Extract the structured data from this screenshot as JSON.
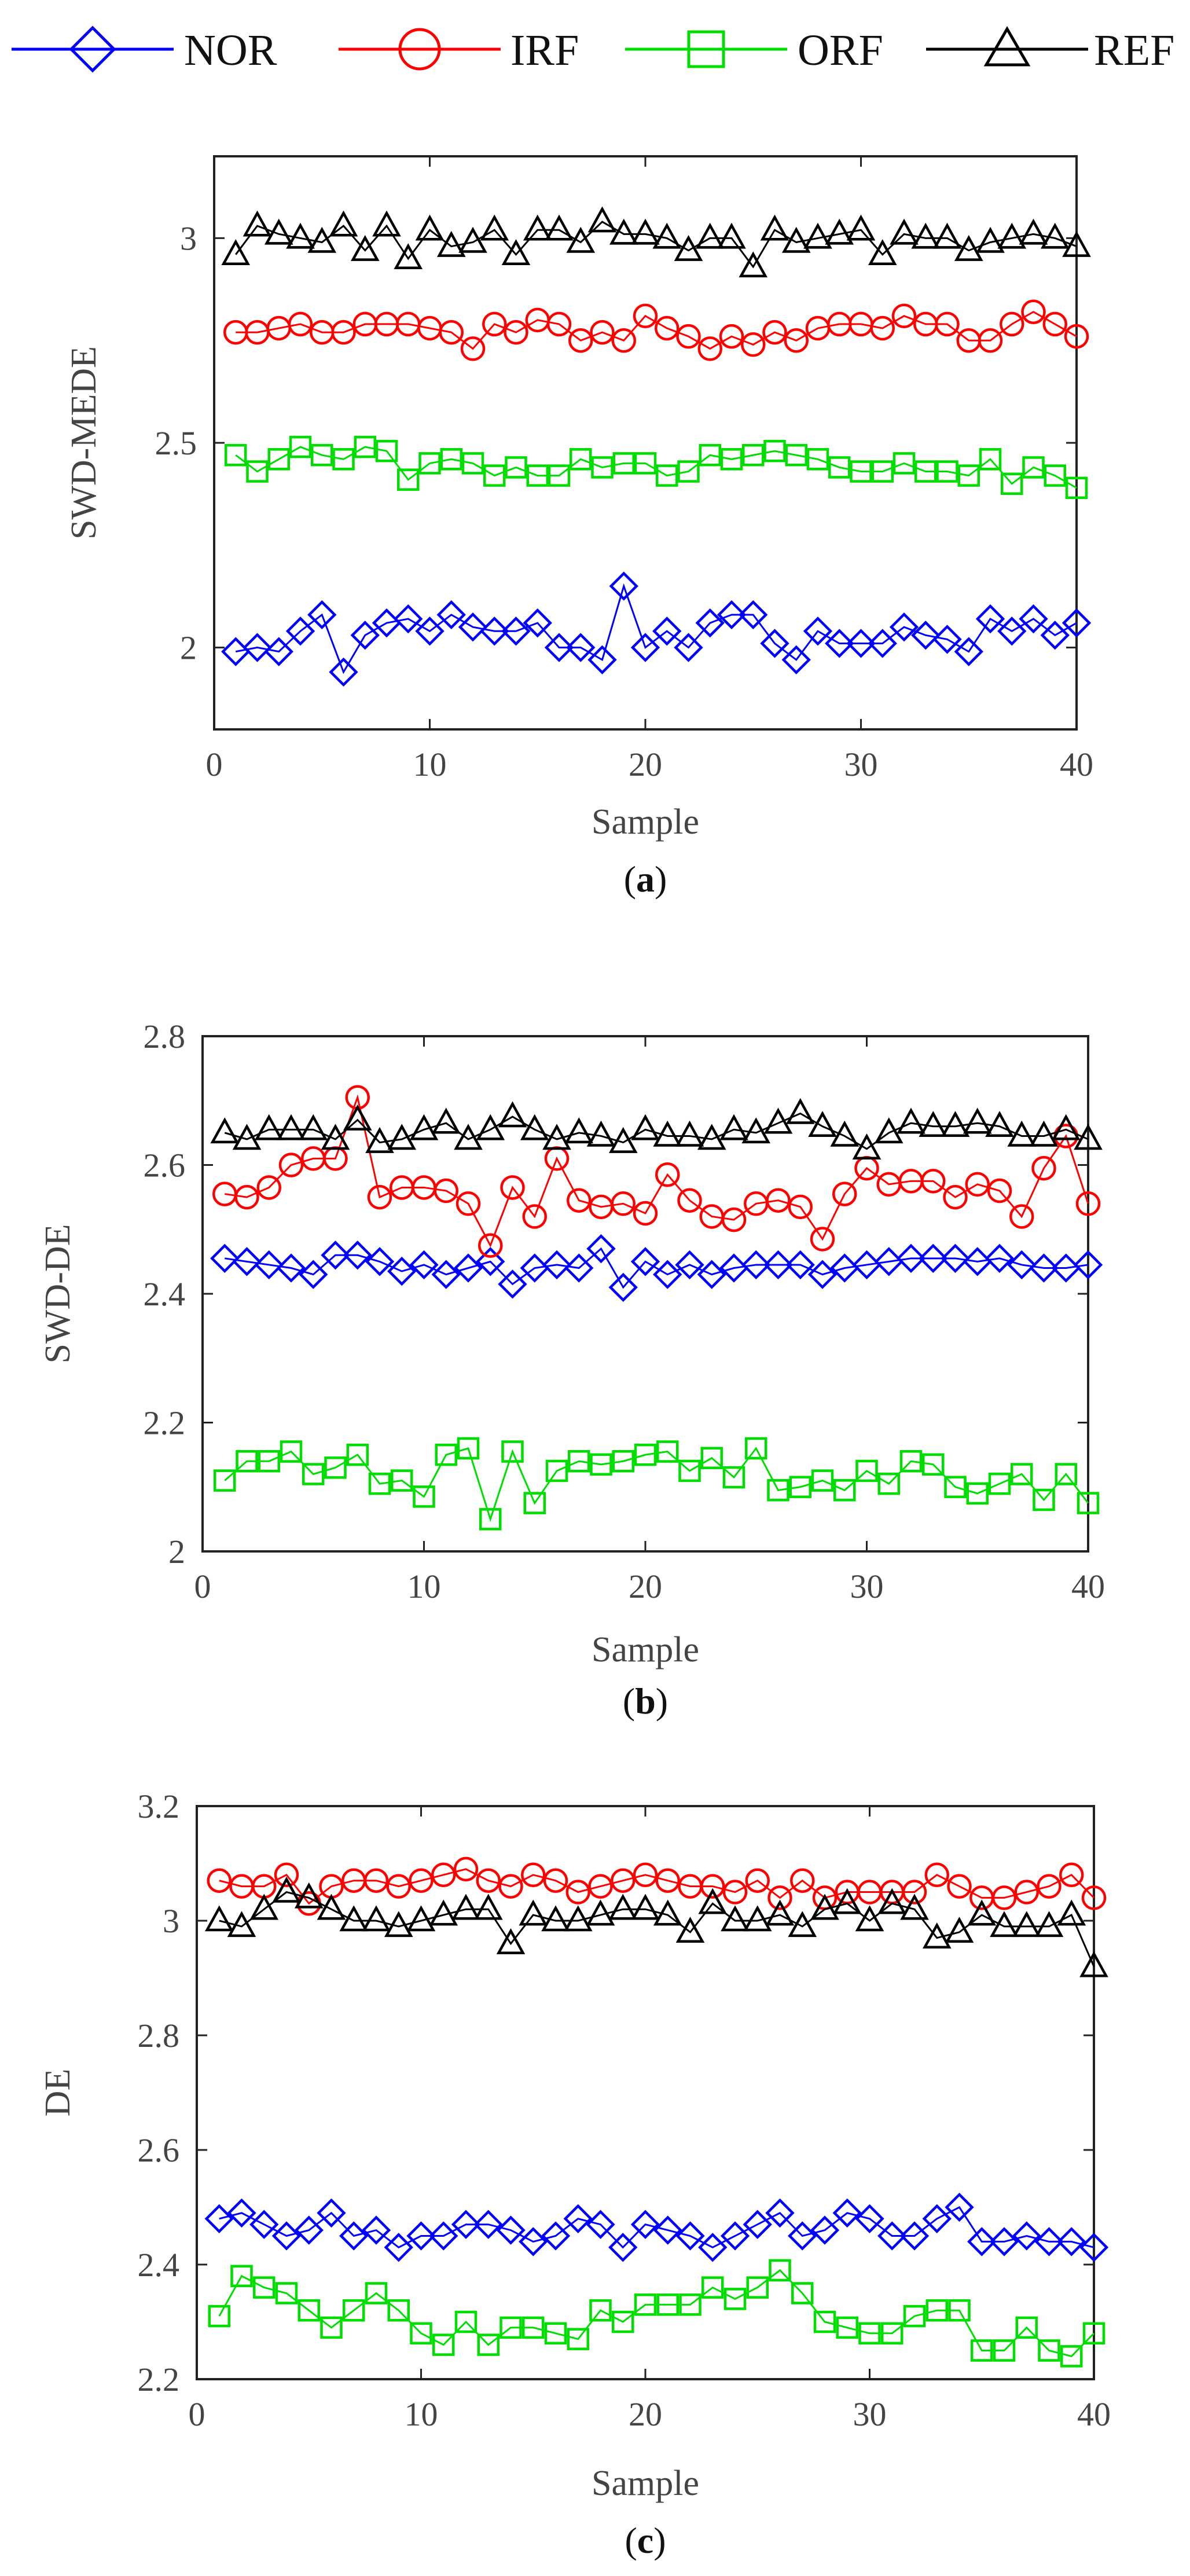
{
  "legend": [
    {
      "name": "NOR",
      "color": "#0000ff",
      "marker": "diamond"
    },
    {
      "name": "IRF",
      "color": "#ff0000",
      "marker": "circle"
    },
    {
      "name": "ORF",
      "color": "#00dd00",
      "marker": "square"
    },
    {
      "name": "REF",
      "color": "#000000",
      "marker": "triangle"
    }
  ],
  "chart_data": [
    {
      "type": "line",
      "caption_label": "a",
      "xlabel": "Sample",
      "ylabel": "SWD-MEDE",
      "xlim": [
        0,
        40
      ],
      "ylim": [
        1.8,
        3.2
      ],
      "xticks": [
        0,
        10,
        20,
        30,
        40
      ],
      "yticks": [
        2,
        2.5,
        3
      ],
      "ytick_labels": [
        "2",
        "2.5",
        "3"
      ],
      "x": [
        1,
        2,
        3,
        4,
        5,
        6,
        7,
        8,
        9,
        10,
        11,
        12,
        13,
        14,
        15,
        16,
        17,
        18,
        19,
        20,
        21,
        22,
        23,
        24,
        25,
        26,
        27,
        28,
        29,
        30,
        31,
        32,
        33,
        34,
        35,
        36,
        37,
        38,
        39,
        40
      ],
      "series": [
        {
          "name": "NOR",
          "values": [
            1.99,
            2.0,
            1.99,
            2.04,
            2.08,
            1.94,
            2.03,
            2.06,
            2.07,
            2.04,
            2.08,
            2.05,
            2.04,
            2.04,
            2.06,
            2.0,
            2.0,
            1.97,
            2.15,
            2.0,
            2.04,
            2.0,
            2.06,
            2.08,
            2.08,
            2.01,
            1.97,
            2.04,
            2.01,
            2.01,
            2.01,
            2.05,
            2.03,
            2.02,
            1.99,
            2.07,
            2.04,
            2.07,
            2.03,
            2.06
          ]
        },
        {
          "name": "IRF",
          "values": [
            2.77,
            2.77,
            2.78,
            2.79,
            2.77,
            2.77,
            2.79,
            2.79,
            2.79,
            2.78,
            2.77,
            2.73,
            2.79,
            2.77,
            2.8,
            2.79,
            2.75,
            2.77,
            2.75,
            2.81,
            2.78,
            2.76,
            2.73,
            2.76,
            2.74,
            2.77,
            2.75,
            2.78,
            2.79,
            2.79,
            2.78,
            2.81,
            2.79,
            2.79,
            2.75,
            2.75,
            2.79,
            2.82,
            2.79,
            2.76
          ]
        },
        {
          "name": "ORF",
          "values": [
            2.47,
            2.43,
            2.46,
            2.49,
            2.47,
            2.46,
            2.49,
            2.48,
            2.41,
            2.45,
            2.46,
            2.45,
            2.42,
            2.44,
            2.42,
            2.42,
            2.46,
            2.44,
            2.45,
            2.45,
            2.42,
            2.43,
            2.47,
            2.46,
            2.47,
            2.48,
            2.47,
            2.46,
            2.44,
            2.43,
            2.43,
            2.45,
            2.43,
            2.43,
            2.42,
            2.46,
            2.4,
            2.44,
            2.42,
            2.39
          ]
        },
        {
          "name": "REF",
          "values": [
            2.96,
            3.03,
            3.01,
            3.0,
            2.99,
            3.03,
            2.97,
            3.03,
            2.95,
            3.02,
            2.98,
            2.99,
            3.02,
            2.96,
            3.02,
            3.02,
            2.99,
            3.04,
            3.01,
            3.01,
            3.0,
            2.97,
            3.0,
            3.0,
            2.93,
            3.02,
            2.99,
            3.0,
            3.01,
            3.02,
            2.96,
            3.01,
            3.0,
            3.0,
            2.97,
            2.99,
            3.0,
            3.01,
            3.0,
            2.98
          ]
        }
      ]
    },
    {
      "type": "line",
      "caption_label": "b",
      "xlabel": "Sample",
      "ylabel": "SWD-DE",
      "xlim": [
        0,
        40
      ],
      "ylim": [
        2.0,
        2.8
      ],
      "xticks": [
        0,
        10,
        20,
        30,
        40
      ],
      "yticks": [
        2.0,
        2.2,
        2.4,
        2.6,
        2.8
      ],
      "ytick_labels": [
        "2",
        "2.2",
        "2.4",
        "2.6",
        "2.8"
      ],
      "x": [
        1,
        2,
        3,
        4,
        5,
        6,
        7,
        8,
        9,
        10,
        11,
        12,
        13,
        14,
        15,
        16,
        17,
        18,
        19,
        20,
        21,
        22,
        23,
        24,
        25,
        26,
        27,
        28,
        29,
        30,
        31,
        32,
        33,
        34,
        35,
        36,
        37,
        38,
        39,
        40
      ],
      "series": [
        {
          "name": "NOR",
          "values": [
            2.455,
            2.45,
            2.445,
            2.44,
            2.43,
            2.46,
            2.46,
            2.45,
            2.435,
            2.445,
            2.43,
            2.44,
            2.45,
            2.415,
            2.44,
            2.445,
            2.44,
            2.47,
            2.41,
            2.45,
            2.43,
            2.445,
            2.43,
            2.44,
            2.445,
            2.445,
            2.445,
            2.43,
            2.44,
            2.445,
            2.45,
            2.455,
            2.455,
            2.455,
            2.45,
            2.455,
            2.445,
            2.44,
            2.44,
            2.445
          ]
        },
        {
          "name": "IRF",
          "values": [
            2.555,
            2.55,
            2.565,
            2.6,
            2.61,
            2.61,
            2.705,
            2.55,
            2.565,
            2.565,
            2.56,
            2.54,
            2.475,
            2.565,
            2.52,
            2.61,
            2.545,
            2.535,
            2.54,
            2.525,
            2.585,
            2.545,
            2.52,
            2.515,
            2.54,
            2.545,
            2.535,
            2.485,
            2.555,
            2.595,
            2.57,
            2.575,
            2.575,
            2.55,
            2.57,
            2.56,
            2.52,
            2.595,
            2.645,
            2.54
          ]
        },
        {
          "name": "ORF",
          "values": [
            2.11,
            2.14,
            2.14,
            2.155,
            2.12,
            2.13,
            2.15,
            2.105,
            2.11,
            2.085,
            2.15,
            2.16,
            2.05,
            2.155,
            2.075,
            2.125,
            2.14,
            2.135,
            2.14,
            2.15,
            2.155,
            2.125,
            2.145,
            2.115,
            2.16,
            2.095,
            2.1,
            2.11,
            2.095,
            2.125,
            2.105,
            2.14,
            2.135,
            2.1,
            2.09,
            2.105,
            2.12,
            2.08,
            2.12,
            2.075
          ]
        },
        {
          "name": "REF",
          "values": [
            2.65,
            2.64,
            2.655,
            2.655,
            2.655,
            2.64,
            2.67,
            2.635,
            2.64,
            2.655,
            2.665,
            2.64,
            2.655,
            2.675,
            2.655,
            2.64,
            2.65,
            2.645,
            2.635,
            2.655,
            2.645,
            2.645,
            2.64,
            2.655,
            2.65,
            2.665,
            2.68,
            2.66,
            2.645,
            2.625,
            2.65,
            2.665,
            2.66,
            2.66,
            2.665,
            2.66,
            2.645,
            2.645,
            2.655,
            2.64
          ]
        }
      ]
    },
    {
      "type": "line",
      "caption_label": "c",
      "xlabel": "Sample",
      "ylabel": "DE",
      "xlim": [
        0,
        40
      ],
      "ylim": [
        2.2,
        3.2
      ],
      "xticks": [
        0,
        10,
        20,
        30,
        40
      ],
      "yticks": [
        2.2,
        2.4,
        2.6,
        2.8,
        3.0,
        3.2
      ],
      "ytick_labels": [
        "2.2",
        "2.4",
        "2.6",
        "2.8",
        "3",
        "3.2"
      ],
      "x": [
        1,
        2,
        3,
        4,
        5,
        6,
        7,
        8,
        9,
        10,
        11,
        12,
        13,
        14,
        15,
        16,
        17,
        18,
        19,
        20,
        21,
        22,
        23,
        24,
        25,
        26,
        27,
        28,
        29,
        30,
        31,
        32,
        33,
        34,
        35,
        36,
        37,
        38,
        39,
        40
      ],
      "series": [
        {
          "name": "NOR",
          "values": [
            2.48,
            2.49,
            2.47,
            2.45,
            2.46,
            2.49,
            2.45,
            2.46,
            2.43,
            2.45,
            2.45,
            2.47,
            2.47,
            2.46,
            2.44,
            2.45,
            2.48,
            2.47,
            2.43,
            2.47,
            2.46,
            2.45,
            2.43,
            2.45,
            2.47,
            2.49,
            2.45,
            2.46,
            2.49,
            2.48,
            2.45,
            2.45,
            2.48,
            2.5,
            2.44,
            2.44,
            2.45,
            2.44,
            2.44,
            2.43
          ]
        },
        {
          "name": "IRF",
          "values": [
            3.07,
            3.06,
            3.06,
            3.08,
            3.03,
            3.06,
            3.07,
            3.07,
            3.06,
            3.07,
            3.08,
            3.09,
            3.07,
            3.06,
            3.08,
            3.07,
            3.05,
            3.06,
            3.07,
            3.08,
            3.07,
            3.06,
            3.06,
            3.05,
            3.07,
            3.04,
            3.07,
            3.04,
            3.05,
            3.05,
            3.05,
            3.05,
            3.08,
            3.06,
            3.04,
            3.04,
            3.05,
            3.06,
            3.08,
            3.04
          ]
        },
        {
          "name": "ORF",
          "values": [
            2.31,
            2.38,
            2.36,
            2.35,
            2.32,
            2.29,
            2.32,
            2.35,
            2.32,
            2.28,
            2.26,
            2.3,
            2.26,
            2.29,
            2.29,
            2.28,
            2.27,
            2.32,
            2.3,
            2.33,
            2.33,
            2.33,
            2.36,
            2.34,
            2.36,
            2.39,
            2.35,
            2.3,
            2.29,
            2.28,
            2.28,
            2.31,
            2.32,
            2.32,
            2.25,
            2.25,
            2.29,
            2.25,
            2.24,
            2.28
          ]
        },
        {
          "name": "REF",
          "values": [
            3.0,
            2.99,
            3.02,
            3.05,
            3.04,
            3.02,
            3.0,
            3.0,
            2.99,
            3.0,
            3.01,
            3.02,
            3.02,
            2.96,
            3.01,
            3.0,
            3.0,
            3.01,
            3.02,
            3.02,
            3.01,
            2.98,
            3.03,
            3.0,
            3.0,
            3.01,
            2.99,
            3.02,
            3.03,
            3.0,
            3.03,
            3.02,
            2.97,
            2.98,
            3.01,
            2.99,
            2.99,
            2.99,
            3.01,
            2.92
          ]
        }
      ]
    }
  ]
}
